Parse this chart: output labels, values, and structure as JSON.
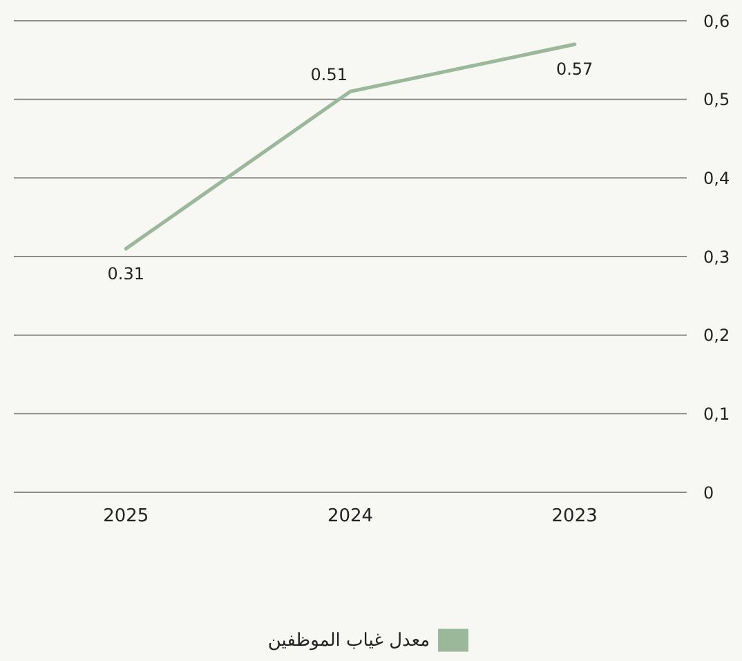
{
  "chart_data": {
    "type": "line",
    "categories": [
      "2025",
      "2024",
      "2023"
    ],
    "series": [
      {
        "name": "معدل غياب الموظفين",
        "color": "#9bb89a",
        "values": [
          0.31,
          0.51,
          0.57
        ]
      }
    ],
    "ylim": [
      0,
      0.6
    ],
    "yticks": [
      0,
      {
        "value": 0.1,
        "label": "0,1"
      },
      {
        "value": 0.2,
        "label": "0,2"
      },
      {
        "value": 0.3,
        "label": "0,3"
      },
      {
        "value": 0.4,
        "label": "0,4"
      },
      {
        "value": 0.5,
        "label": "0,5"
      },
      {
        "value": 0.6,
        "label": "0,6"
      }
    ],
    "grid": "y",
    "legend": "bottom",
    "marker": "none",
    "line_style": "solid",
    "data_labels": true
  }
}
